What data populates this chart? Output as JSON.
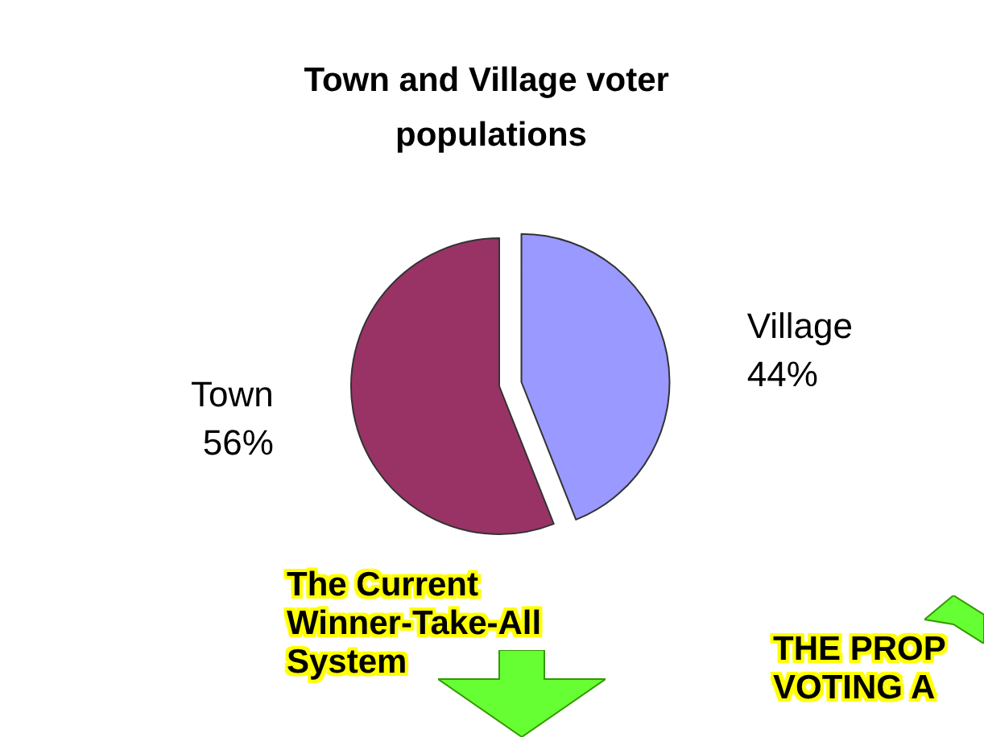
{
  "chart_data": {
    "type": "pie",
    "title": "Town and Village voter populations",
    "categories": [
      "Village",
      "Town"
    ],
    "values": [
      44,
      56
    ],
    "colors": [
      "#9999ff",
      "#993366"
    ],
    "value_labels": [
      "44%",
      "56%"
    ],
    "annotations": [
      "The Current\nWinner-Take-All\nSystem",
      "THE PROP\nVOTING A"
    ],
    "legend": false
  }
}
